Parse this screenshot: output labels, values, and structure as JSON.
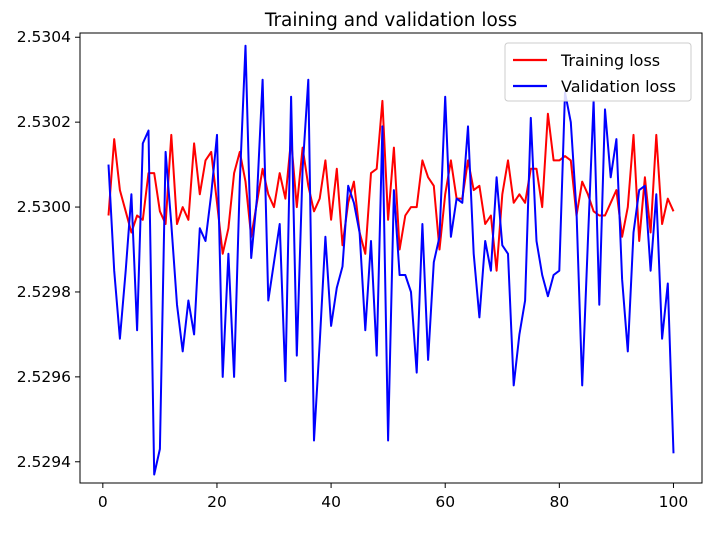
{
  "chart_data": {
    "type": "line",
    "title": "Training and validation loss",
    "xlabel": "",
    "ylabel": "",
    "xlim": [
      -4,
      105
    ],
    "ylim": [
      2.52935,
      2.53041
    ],
    "xticks": [
      0,
      20,
      40,
      60,
      80,
      100
    ],
    "xtick_labels": [
      "0",
      "20",
      "40",
      "60",
      "80",
      "100"
    ],
    "yticks": [
      2.5294,
      2.5296,
      2.5298,
      2.53,
      2.5302,
      2.5304
    ],
    "ytick_labels": [
      "2.5294",
      "2.5296",
      "2.5298",
      "2.5300",
      "2.5302",
      "2.5304"
    ],
    "legend_position": "top-right",
    "series": [
      {
        "name": "Training loss",
        "color": "#ff0000",
        "x": [
          1,
          2,
          3,
          4,
          5,
          6,
          7,
          8,
          9,
          10,
          11,
          12,
          13,
          14,
          15,
          16,
          17,
          18,
          19,
          20,
          21,
          22,
          23,
          24,
          25,
          26,
          27,
          28,
          29,
          30,
          31,
          32,
          33,
          34,
          35,
          36,
          37,
          38,
          39,
          40,
          41,
          42,
          43,
          44,
          45,
          46,
          47,
          48,
          49,
          50,
          51,
          52,
          53,
          54,
          55,
          56,
          57,
          58,
          59,
          60,
          61,
          62,
          63,
          64,
          65,
          66,
          67,
          68,
          69,
          70,
          71,
          72,
          73,
          74,
          75,
          76,
          77,
          78,
          79,
          80,
          81,
          82,
          83,
          84,
          85,
          86,
          87,
          88,
          89,
          90,
          91,
          92,
          93,
          94,
          95,
          96,
          97,
          98,
          99,
          100
        ],
        "values": [
          2.52998,
          2.53016,
          2.53004,
          2.52999,
          2.52994,
          2.52998,
          2.52997,
          2.53008,
          2.53008,
          2.52999,
          2.52996,
          2.53017,
          2.52996,
          2.53,
          2.52997,
          2.53015,
          2.53003,
          2.53011,
          2.53013,
          2.53001,
          2.52989,
          2.52995,
          2.53008,
          2.53013,
          2.53006,
          2.52993,
          2.53001,
          2.53009,
          2.53003,
          2.53,
          2.53008,
          2.53002,
          2.53016,
          2.53,
          2.53014,
          2.53005,
          2.52999,
          2.53002,
          2.53011,
          2.52997,
          2.53009,
          2.52991,
          2.53001,
          2.53006,
          2.52994,
          2.52989,
          2.53008,
          2.53009,
          2.53025,
          2.52997,
          2.53014,
          2.5299,
          2.52998,
          2.53,
          2.53,
          2.53011,
          2.53007,
          2.53005,
          2.5299,
          2.53003,
          2.53011,
          2.53002,
          2.53002,
          2.53011,
          2.53004,
          2.53005,
          2.52996,
          2.52998,
          2.52985,
          2.53003,
          2.53011,
          2.53001,
          2.53003,
          2.53001,
          2.53009,
          2.53009,
          2.53,
          2.53022,
          2.53011,
          2.53011,
          2.53012,
          2.53011,
          2.52998,
          2.53006,
          2.53003,
          2.52999,
          2.52998,
          2.52998,
          2.53001,
          2.53004,
          2.52993,
          2.53,
          2.53017,
          2.52992,
          2.53007,
          2.52994,
          2.53017,
          2.52996,
          2.53002,
          2.52999
        ]
      },
      {
        "name": "Validation loss",
        "color": "#0000ff",
        "x": [
          1,
          2,
          3,
          4,
          5,
          6,
          7,
          8,
          9,
          10,
          11,
          12,
          13,
          14,
          15,
          16,
          17,
          18,
          19,
          20,
          21,
          22,
          23,
          24,
          25,
          26,
          27,
          28,
          29,
          30,
          31,
          32,
          33,
          34,
          35,
          36,
          37,
          38,
          39,
          40,
          41,
          42,
          43,
          44,
          45,
          46,
          47,
          48,
          49,
          50,
          51,
          52,
          53,
          54,
          55,
          56,
          57,
          58,
          59,
          60,
          61,
          62,
          63,
          64,
          65,
          66,
          67,
          68,
          69,
          70,
          71,
          72,
          73,
          74,
          75,
          76,
          77,
          78,
          79,
          80,
          81,
          82,
          83,
          84,
          85,
          86,
          87,
          88,
          89,
          90,
          91,
          92,
          93,
          94,
          95,
          96,
          97,
          98,
          99,
          100
        ],
        "values": [
          2.5301,
          2.52985,
          2.52969,
          2.52985,
          2.53003,
          2.52971,
          2.53015,
          2.53018,
          2.52937,
          2.52943,
          2.53013,
          2.52996,
          2.52977,
          2.52966,
          2.52978,
          2.5297,
          2.52995,
          2.52992,
          2.53003,
          2.53017,
          2.5296,
          2.52989,
          2.5296,
          2.53006,
          2.53038,
          2.52988,
          2.53002,
          2.5303,
          2.52978,
          2.52987,
          2.52996,
          2.52959,
          2.53026,
          2.52965,
          2.53009,
          2.5303,
          2.52945,
          2.52968,
          2.52993,
          2.52972,
          2.52981,
          2.52986,
          2.53005,
          2.53001,
          2.52994,
          2.52971,
          2.52992,
          2.52965,
          2.53019,
          2.52945,
          2.53004,
          2.52984,
          2.52984,
          2.5298,
          2.52961,
          2.52996,
          2.52964,
          2.52987,
          2.52993,
          2.53026,
          2.52993,
          2.53002,
          2.53001,
          2.53019,
          2.52989,
          2.52974,
          2.52992,
          2.52985,
          2.53007,
          2.52991,
          2.52989,
          2.52958,
          2.5297,
          2.52978,
          2.53021,
          2.52992,
          2.52984,
          2.52979,
          2.52984,
          2.52985,
          2.53027,
          2.5302,
          2.52999,
          2.52958,
          2.52992,
          2.53025,
          2.52977,
          2.53023,
          2.53007,
          2.53016,
          2.52983,
          2.52966,
          2.52994,
          2.53004,
          2.53005,
          2.52985,
          2.53003,
          2.52969,
          2.52982,
          2.52942
        ]
      }
    ]
  }
}
